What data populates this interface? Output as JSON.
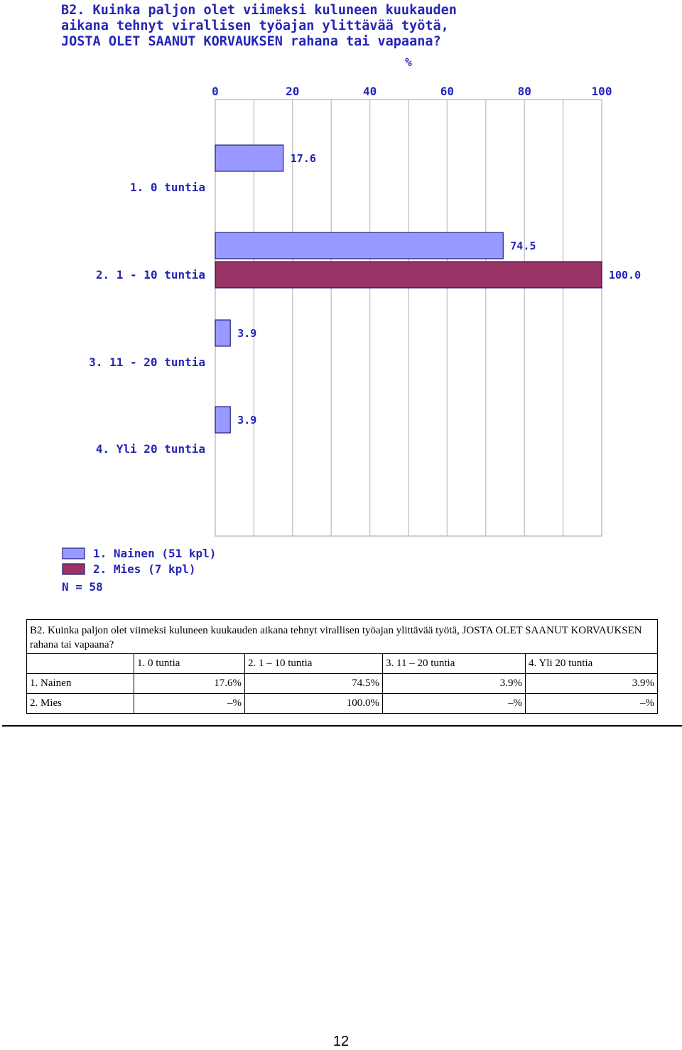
{
  "chart_data": {
    "type": "bar",
    "orientation": "horizontal",
    "title": "B2. Kuinka paljon olet viimeksi kuluneen kuukauden\naikana tehnyt virallisen työajan ylittävää työtä,\nJOSTA OLET SAANUT KORVAUKSEN rahana tai vapaana?",
    "axis_unit": "%",
    "xlim": [
      0,
      100
    ],
    "ticks": [
      0,
      20,
      40,
      60,
      80,
      100
    ],
    "tick_labels": [
      "0",
      "20",
      "40",
      "60",
      "80",
      "100"
    ],
    "categories": [
      "1. 0 tuntia",
      "2. 1 - 10 tuntia",
      "3. 11 - 20 tuntia",
      "4. Yli 20 tuntia"
    ],
    "series": [
      {
        "name": "1. Nainen  (51 kpl)",
        "color": "#9999ff",
        "values": [
          17.6,
          74.5,
          3.9,
          3.9
        ],
        "value_labels": [
          "17.6",
          "74.5",
          "3.9",
          "3.9"
        ]
      },
      {
        "name": "2. Mies  (7 kpl)",
        "color": "#993366",
        "values": [
          null,
          100.0,
          null,
          null
        ],
        "value_labels": [
          null,
          "100.0",
          null,
          null
        ]
      }
    ],
    "n_label": "N = 58",
    "grid": true,
    "legend_position": "bottom-left"
  },
  "table": {
    "caption": "B2. Kuinka paljon olet viimeksi kuluneen kuukauden aikana tehnyt virallisen työajan ylittävää työtä, JOSTA OLET SAANUT KORVAUKSEN rahana tai vapaana?",
    "headers": [
      "",
      "1. 0 tuntia",
      "2. 1 – 10 tuntia",
      "3. 11 – 20 tuntia",
      "4. Yli 20 tuntia"
    ],
    "rows": [
      [
        "1. Nainen",
        "17.6%",
        "74.5%",
        "3.9%",
        "3.9%"
      ],
      [
        "2. Mies",
        "–%",
        "100.0%",
        "–%",
        "–%"
      ]
    ]
  },
  "page_number": "12"
}
